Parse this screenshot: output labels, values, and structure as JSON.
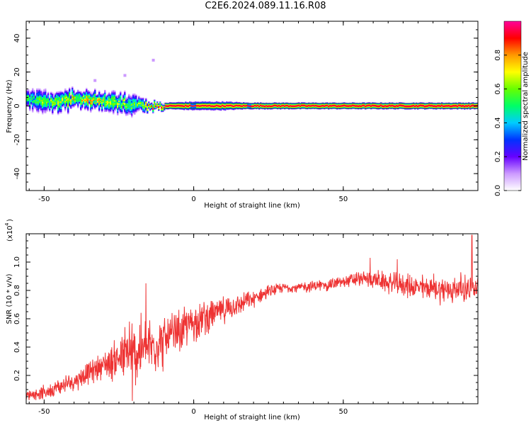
{
  "title": "C2E6.2024.089.11.16.R08",
  "colors": {
    "signal": "#ee3333",
    "axis": "#000000",
    "background": "#ffffff"
  },
  "chart_data": [
    {
      "type": "heatmap",
      "xlabel": "Height of straight line (km)",
      "ylabel": "Frequency (Hz)",
      "xlim": [
        -56,
        95
      ],
      "ylim": [
        -50,
        50
      ],
      "xticks": [
        -50,
        0,
        50
      ],
      "yticks": [
        -40,
        -20,
        0,
        20,
        40
      ],
      "ytick_labels": [
        "-40",
        "-20",
        "0",
        "20",
        "40"
      ],
      "xtick_labels": [
        "-50",
        "0",
        "50"
      ],
      "colorbar": {
        "label": "Normalized spectral amplitude",
        "range": [
          0,
          1
        ],
        "ticks": [
          0.0,
          0.2,
          0.4,
          0.6,
          0.8
        ],
        "tick_labels": [
          "0.0",
          "0.2",
          "0.4",
          "0.6",
          "0.8"
        ],
        "colormap": [
          "#ffffff",
          "#cc99ff",
          "#6600ff",
          "#0033ff",
          "#00ccff",
          "#00ff66",
          "#66ff00",
          "#ffff00",
          "#ff9900",
          "#ff0000",
          "#ff0099"
        ]
      },
      "band": {
        "description_points": [
          {
            "x": -56,
            "freq": 4,
            "width": 9,
            "amp": 0.5
          },
          {
            "x": -48,
            "freq": 2,
            "width": 9,
            "amp": 0.6
          },
          {
            "x": -40,
            "freq": 4,
            "width": 8,
            "amp": 0.7
          },
          {
            "x": -32,
            "freq": 3,
            "width": 8,
            "amp": 0.7
          },
          {
            "x": -25,
            "freq": 1,
            "width": 9,
            "amp": 0.6
          },
          {
            "x": -20,
            "freq": 1,
            "width": 8,
            "amp": 0.6
          },
          {
            "x": -15,
            "freq": -1,
            "width": 4,
            "amp": 0.75
          },
          {
            "x": -10,
            "freq": 0,
            "width": 3,
            "amp": 0.9
          },
          {
            "x": 0,
            "freq": 0,
            "width": 4,
            "amp": 0.8
          },
          {
            "x": 10,
            "freq": 0,
            "width": 4,
            "amp": 0.8
          },
          {
            "x": 18,
            "freq": 0,
            "width": 3,
            "amp": 0.85
          },
          {
            "x": 95,
            "freq": 0,
            "width": 3,
            "amp": 0.95
          }
        ],
        "outliers": [
          {
            "x": -13.5,
            "freq": 27
          },
          {
            "x": -23,
            "freq": 18
          },
          {
            "x": -33,
            "freq": 15
          }
        ]
      }
    },
    {
      "type": "line",
      "xlabel": "Height of straight line (km)",
      "ylabel": "SNR (10 * v/v)",
      "y_multiplier": "(x10",
      "y_multiplier_exp": "4",
      "xlim": [
        -56,
        95
      ],
      "ylim": [
        0,
        1.2
      ],
      "xticks": [
        -50,
        0,
        50
      ],
      "xtick_labels": [
        "-50",
        "0",
        "50"
      ],
      "yticks": [
        0.2,
        0.4,
        0.6,
        0.8,
        1.0
      ],
      "ytick_labels": [
        "0.2",
        "0.4",
        "0.6",
        "0.8",
        "1.0"
      ],
      "trend": {
        "x": [
          -56,
          -50,
          -45,
          -40,
          -35,
          -30,
          -25,
          -20,
          -15,
          -10,
          -5,
          0,
          5,
          10,
          15,
          20,
          25,
          30,
          35,
          40,
          45,
          50,
          55,
          60,
          65,
          70,
          75,
          80,
          85,
          90,
          95
        ],
        "y": [
          0.06,
          0.08,
          0.12,
          0.16,
          0.22,
          0.28,
          0.32,
          0.36,
          0.4,
          0.44,
          0.5,
          0.58,
          0.62,
          0.66,
          0.7,
          0.74,
          0.79,
          0.82,
          0.82,
          0.83,
          0.84,
          0.86,
          0.88,
          0.88,
          0.85,
          0.84,
          0.82,
          0.82,
          0.8,
          0.82,
          0.8
        ]
      },
      "noise": {
        "x": [
          -56,
          -40,
          -30,
          -20,
          -10,
          0,
          10,
          20,
          30,
          50,
          70,
          85,
          95
        ],
        "amp": [
          0.03,
          0.06,
          0.08,
          0.22,
          0.16,
          0.12,
          0.08,
          0.05,
          0.03,
          0.04,
          0.07,
          0.09,
          0.08
        ]
      },
      "spikes": [
        {
          "x": -16,
          "y": 0.85
        },
        {
          "x": -20.5,
          "y": 0.02
        },
        {
          "x": -21.5,
          "y": 0.58
        },
        {
          "x": 59,
          "y": 1.03
        },
        {
          "x": 68,
          "y": 1.02
        },
        {
          "x": 93,
          "y": 1.19
        }
      ]
    }
  ]
}
